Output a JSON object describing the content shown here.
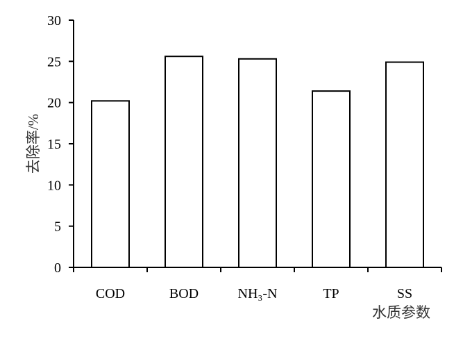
{
  "chart_data": {
    "type": "bar",
    "categories": [
      "COD",
      "BOD",
      "NH₃-N",
      "TP",
      "SS"
    ],
    "values": [
      20.2,
      25.6,
      25.3,
      21.4,
      24.9
    ],
    "title": "",
    "xlabel": "水质参数",
    "ylabel": "去除率/%",
    "ylim": [
      0,
      30
    ],
    "yticks": [
      0,
      5,
      10,
      15,
      20,
      25,
      30
    ],
    "grid": false,
    "legend": "none",
    "colors": {
      "bar_fill": "#ffffff",
      "bar_stroke": "#000000",
      "axis": "#000000"
    }
  }
}
